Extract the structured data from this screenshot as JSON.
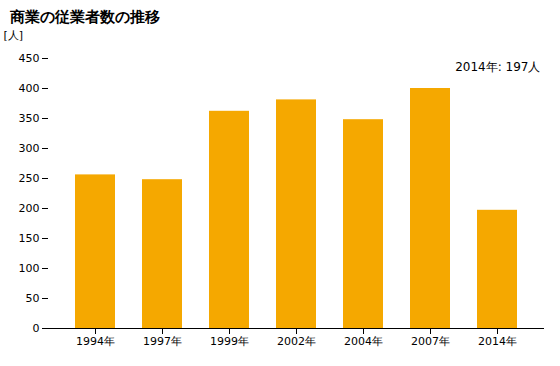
{
  "chart_data": {
    "type": "bar",
    "title": "商業の従業者数の推移",
    "ylabel": "[人]",
    "annotation": "2014年: 197人",
    "categories": [
      "1994年",
      "1997年",
      "1999年",
      "2002年",
      "2004年",
      "2007年",
      "2014年"
    ],
    "values": [
      256,
      248,
      362,
      381,
      348,
      400,
      197
    ],
    "color": "#F5A800",
    "ylim": [
      0,
      450
    ],
    "yticks": [
      0,
      50,
      100,
      150,
      200,
      250,
      300,
      350,
      400,
      450
    ],
    "grid": false
  }
}
